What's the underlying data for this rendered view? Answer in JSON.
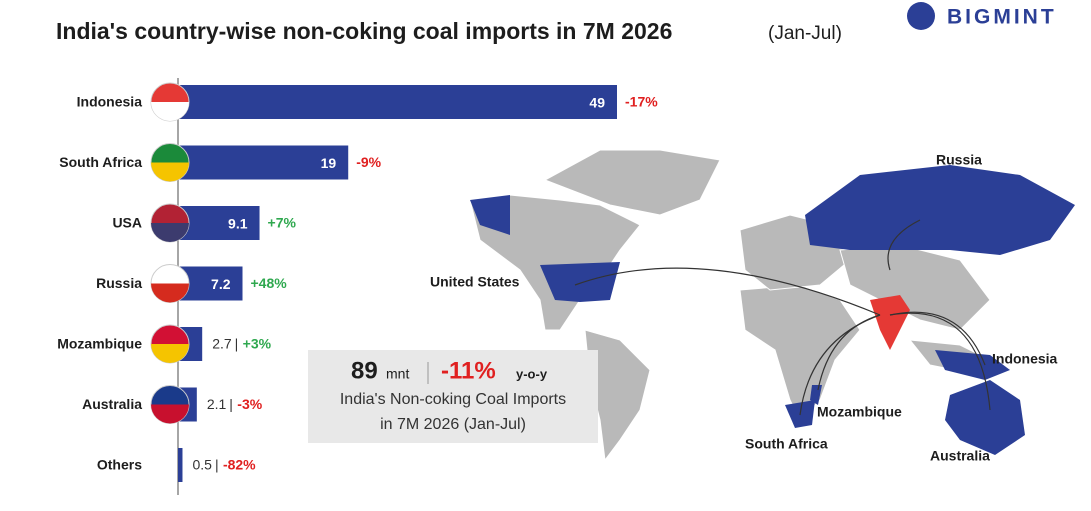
{
  "chart_data": {
    "type": "bar",
    "orientation": "horizontal",
    "title": "India's country-wise non-coking coal imports in 7M 2026",
    "subtitle": "(Jan-Jul)",
    "brand": "BIGMINT",
    "categories": [
      "Indonesia",
      "South Africa",
      "USA",
      "Russia",
      "Mozambique",
      "Australia",
      "Others"
    ],
    "values": [
      49,
      19,
      9.1,
      7.2,
      2.7,
      2.1,
      0.5
    ],
    "yoy_changes": [
      "-17%",
      "-9%",
      "+7%",
      "+48%",
      "+3%",
      "-3%",
      "-82%"
    ],
    "color": "#2b3f96",
    "summary": {
      "total": "89",
      "unit": "mnt",
      "change": "-11%",
      "change_unit": "y-o-y",
      "line1": "India's Non-coking Coal Imports",
      "line2": "in 7M 2026 (Jan-Jul)"
    },
    "map_labels": [
      "Russia",
      "United States",
      "Indonesia",
      "Mozambique",
      "South Africa",
      "Australia"
    ]
  }
}
